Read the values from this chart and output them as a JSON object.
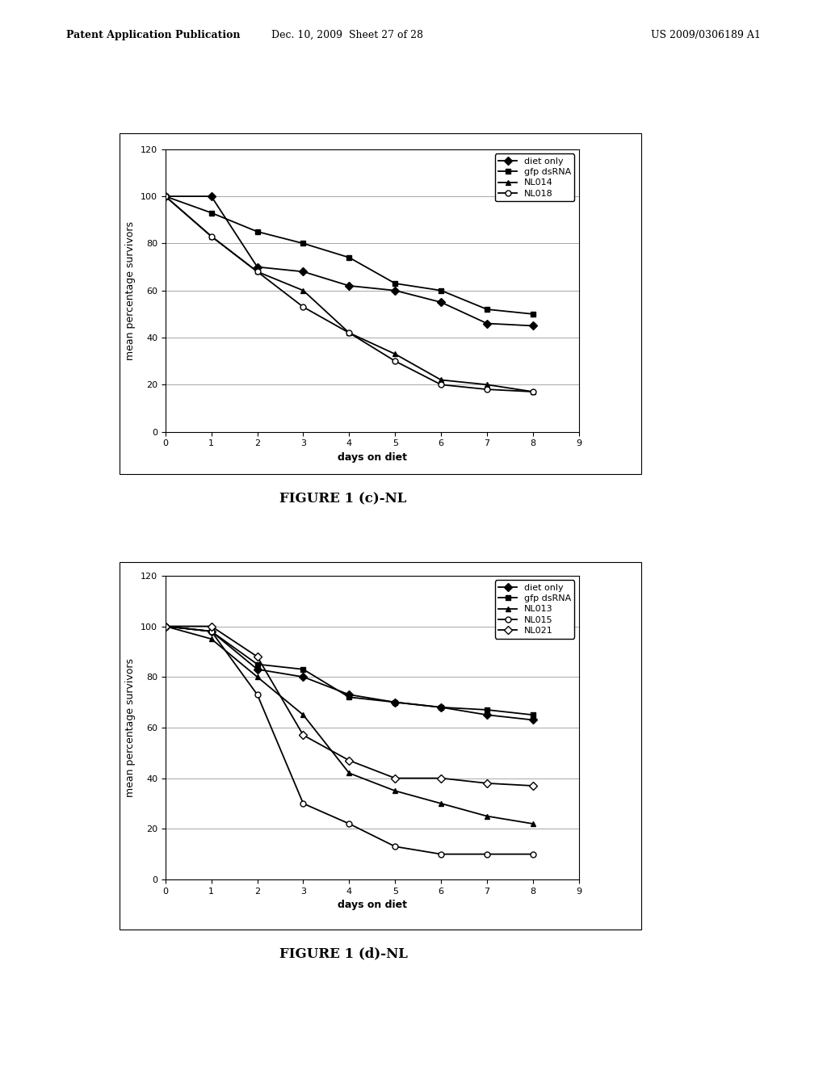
{
  "page_header_left": "Patent Application Publication",
  "page_header_mid": "Dec. 10, 2009  Sheet 27 of 28",
  "page_header_right": "US 2009/0306189 A1",
  "chart_c": {
    "title": "FIGURE 1 (c)-NL",
    "xlabel": "days on diet",
    "ylabel": "mean percentage survivors",
    "ylim": [
      0,
      120
    ],
    "xlim": [
      0,
      9
    ],
    "yticks": [
      0,
      20,
      40,
      60,
      80,
      100,
      120
    ],
    "xticks": [
      0,
      1,
      2,
      3,
      4,
      5,
      6,
      7,
      8,
      9
    ],
    "series": [
      {
        "label": "diet only",
        "marker": "D",
        "fillstyle": "full",
        "x": [
          0,
          1,
          2,
          3,
          4,
          5,
          6,
          7,
          8
        ],
        "y": [
          100,
          100,
          70,
          68,
          62,
          60,
          55,
          46,
          45
        ]
      },
      {
        "label": "gfp dsRNA",
        "marker": "s",
        "fillstyle": "full",
        "x": [
          0,
          1,
          2,
          3,
          4,
          5,
          6,
          7,
          8
        ],
        "y": [
          100,
          93,
          85,
          80,
          74,
          63,
          60,
          52,
          50
        ]
      },
      {
        "label": "NL014",
        "marker": "^",
        "fillstyle": "full",
        "x": [
          0,
          1,
          2,
          3,
          4,
          5,
          6,
          7,
          8
        ],
        "y": [
          100,
          83,
          68,
          60,
          42,
          33,
          22,
          20,
          17
        ]
      },
      {
        "label": "NL018",
        "marker": "o",
        "fillstyle": "none",
        "x": [
          0,
          1,
          2,
          3,
          4,
          5,
          6,
          7,
          8
        ],
        "y": [
          100,
          83,
          68,
          53,
          42,
          30,
          20,
          18,
          17
        ]
      }
    ]
  },
  "chart_d": {
    "title": "FIGURE 1 (d)-NL",
    "xlabel": "days on diet",
    "ylabel": "mean percentage survivors",
    "ylim": [
      0,
      120
    ],
    "xlim": [
      0,
      9
    ],
    "yticks": [
      0,
      20,
      40,
      60,
      80,
      100,
      120
    ],
    "xticks": [
      0,
      1,
      2,
      3,
      4,
      5,
      6,
      7,
      8,
      9
    ],
    "series": [
      {
        "label": "diet only",
        "marker": "D",
        "fillstyle": "full",
        "x": [
          0,
          1,
          2,
          3,
          4,
          5,
          6,
          7,
          8
        ],
        "y": [
          100,
          98,
          83,
          80,
          73,
          70,
          68,
          65,
          63
        ]
      },
      {
        "label": "gfp dsRNA",
        "marker": "s",
        "fillstyle": "full",
        "x": [
          0,
          1,
          2,
          3,
          4,
          5,
          6,
          7,
          8
        ],
        "y": [
          100,
          98,
          85,
          83,
          72,
          70,
          68,
          67,
          65
        ]
      },
      {
        "label": "NL013",
        "marker": "^",
        "fillstyle": "full",
        "x": [
          0,
          1,
          2,
          3,
          4,
          5,
          6,
          7,
          8
        ],
        "y": [
          100,
          95,
          80,
          65,
          42,
          35,
          30,
          25,
          22
        ]
      },
      {
        "label": "NL015",
        "marker": "o",
        "fillstyle": "none",
        "x": [
          0,
          1,
          2,
          3,
          4,
          5,
          6,
          7,
          8
        ],
        "y": [
          100,
          98,
          73,
          30,
          22,
          13,
          10,
          10,
          10
        ]
      },
      {
        "label": "NL021",
        "marker": "D",
        "fillstyle": "none",
        "x": [
          0,
          1,
          2,
          3,
          4,
          5,
          6,
          7,
          8
        ],
        "y": [
          100,
          100,
          88,
          57,
          47,
          40,
          40,
          38,
          37
        ]
      }
    ]
  },
  "background_color": "#ffffff",
  "plot_bg_color": "#ffffff",
  "line_color": "#000000",
  "font_size_title": 12,
  "font_size_label": 9,
  "font_size_tick": 8,
  "font_size_legend": 8,
  "font_size_header": 9,
  "markersize": 5,
  "linewidth": 1.3
}
